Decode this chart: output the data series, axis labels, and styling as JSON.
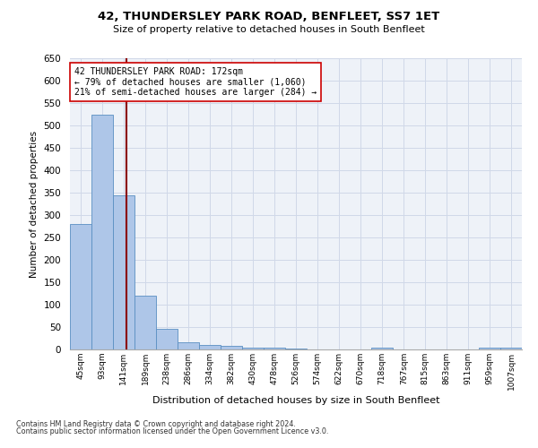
{
  "title": "42, THUNDERSLEY PARK ROAD, BENFLEET, SS7 1ET",
  "subtitle": "Size of property relative to detached houses in South Benfleet",
  "xlabel": "Distribution of detached houses by size in South Benfleet",
  "ylabel": "Number of detached properties",
  "footer1": "Contains HM Land Registry data © Crown copyright and database right 2024.",
  "footer2": "Contains public sector information licensed under the Open Government Licence v3.0.",
  "annotation_line1": "42 THUNDERSLEY PARK ROAD: 172sqm",
  "annotation_line2": "← 79% of detached houses are smaller (1,060)",
  "annotation_line3": "21% of semi-detached houses are larger (284) →",
  "bar_color": "#aec6e8",
  "bar_edge_color": "#5a8fc2",
  "vline_color": "#8b0000",
  "vline_x": 172,
  "categories": [
    "45sqm",
    "93sqm",
    "141sqm",
    "189sqm",
    "238sqm",
    "286sqm",
    "334sqm",
    "382sqm",
    "430sqm",
    "478sqm",
    "526sqm",
    "574sqm",
    "622sqm",
    "670sqm",
    "718sqm",
    "767sqm",
    "815sqm",
    "863sqm",
    "911sqm",
    "959sqm",
    "1007sqm"
  ],
  "bin_edges": [
    45,
    93,
    141,
    189,
    238,
    286,
    334,
    382,
    430,
    478,
    526,
    574,
    622,
    670,
    718,
    767,
    815,
    863,
    911,
    959,
    1007,
    1055
  ],
  "values": [
    280,
    525,
    345,
    120,
    47,
    16,
    10,
    8,
    5,
    4,
    2,
    1,
    0,
    0,
    5,
    0,
    0,
    0,
    0,
    4,
    5
  ],
  "ylim": [
    0,
    650
  ],
  "yticks": [
    0,
    50,
    100,
    150,
    200,
    250,
    300,
    350,
    400,
    450,
    500,
    550,
    600,
    650
  ],
  "grid_color": "#d0d8e8",
  "bg_color": "#eef2f8"
}
